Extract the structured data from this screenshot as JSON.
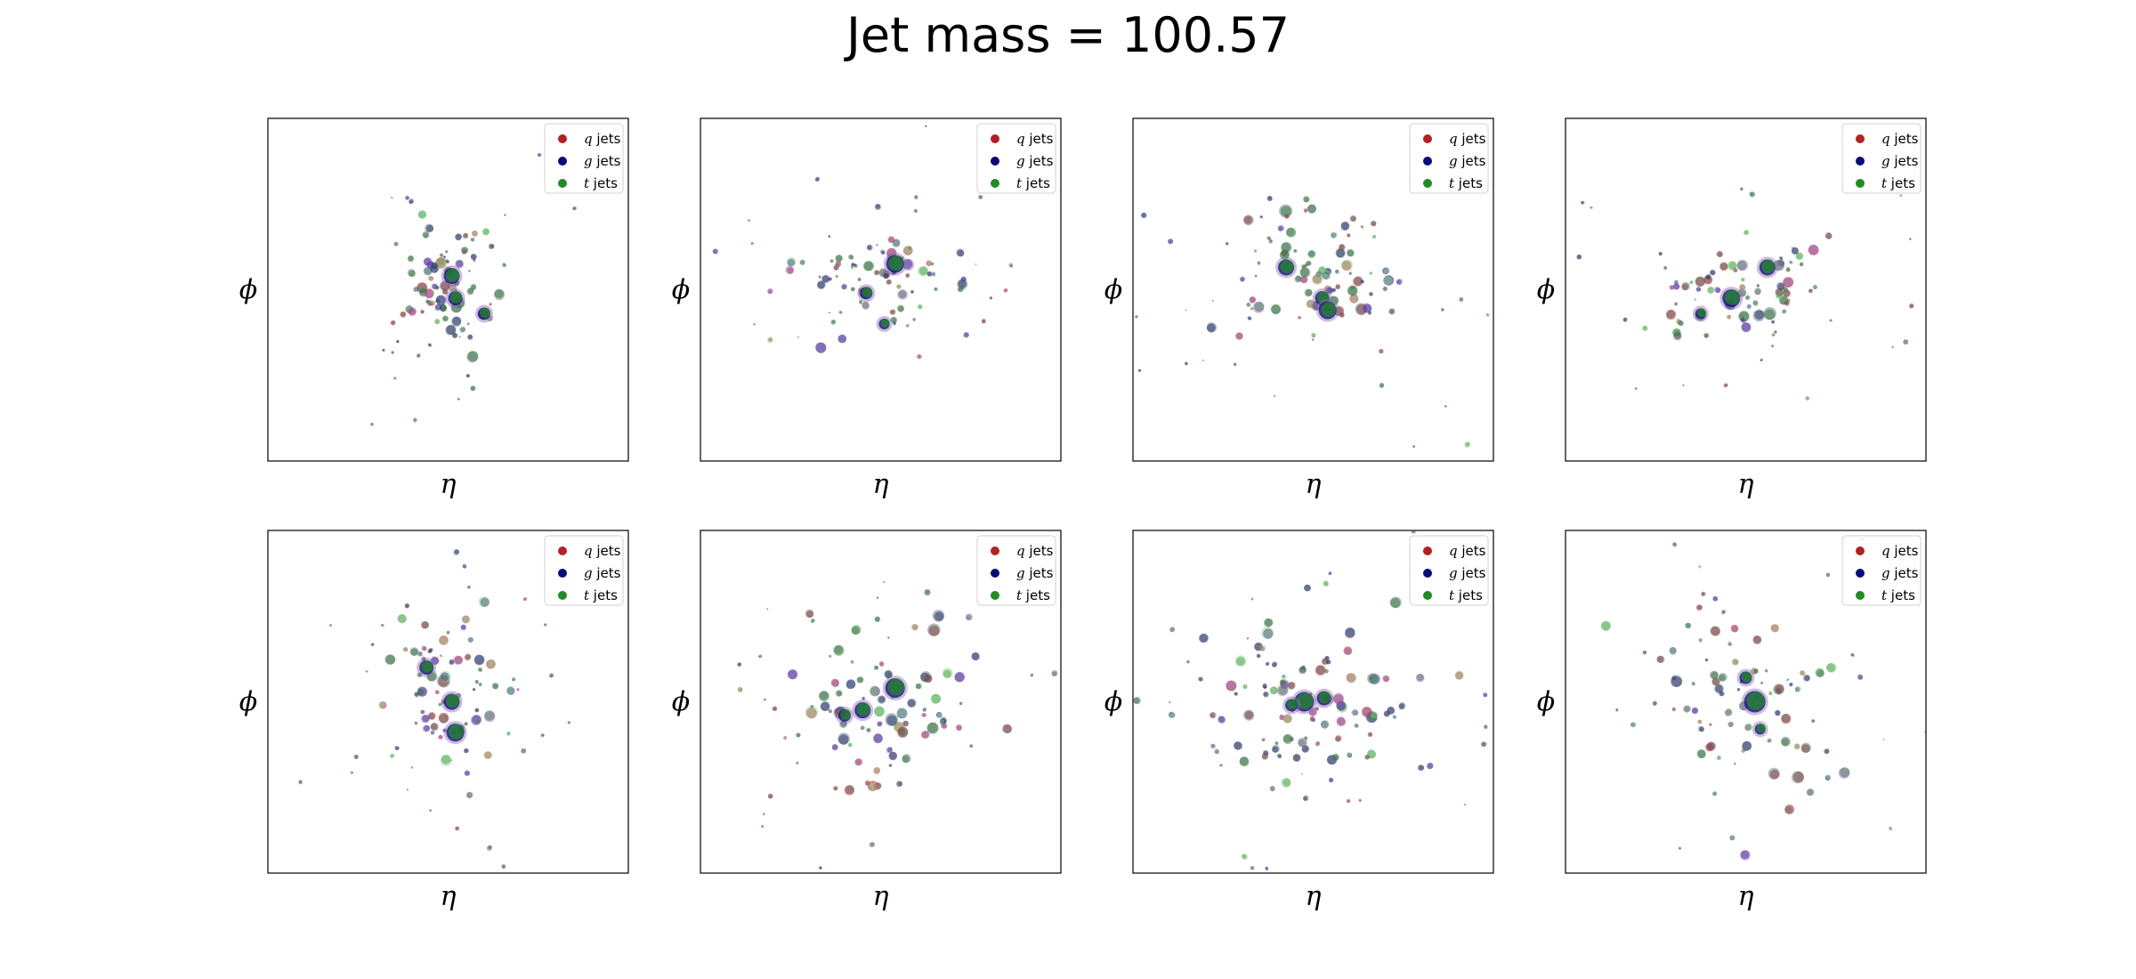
{
  "figure": {
    "title": "Jet mass = 100.57"
  },
  "colors": {
    "q": "#b22222",
    "g": "#0a0a78",
    "t": "#228b22",
    "purple_overlay": "#9467bd",
    "light_green_overlay": "#8fd18f",
    "grey_overlay": "#556b6b"
  },
  "chart_data": [
    {
      "type": "scatter",
      "panel": 1,
      "xlabel": "η",
      "ylabel": "ϕ",
      "legend": {
        "placement": "top-right",
        "entries": [
          {
            "symbol": "q",
            "text": "jets",
            "color": "#b22222"
          },
          {
            "symbol": "g",
            "text": "jets",
            "color": "#0a0a78"
          },
          {
            "symbol": "t",
            "text": "jets",
            "color": "#228b22"
          }
        ]
      },
      "grid": false,
      "ticks": false,
      "xlim": [
        -1,
        1
      ],
      "ylim": [
        -1,
        1
      ],
      "center": [
        0.02,
        0.04
      ],
      "spread": [
        0.18,
        0.25
      ],
      "points": 95,
      "seed": 11,
      "clusters": [
        {
          "x": 0.02,
          "y": 0.08,
          "r": 9
        },
        {
          "x": 0.04,
          "y": -0.05,
          "r": 8
        },
        {
          "x": 0.2,
          "y": -0.14,
          "r": 7
        }
      ]
    },
    {
      "type": "scatter",
      "panel": 2,
      "xlabel": "η",
      "ylabel": "ϕ",
      "legend": {
        "placement": "top-right",
        "entries": [
          {
            "symbol": "q",
            "text": "jets",
            "color": "#b22222"
          },
          {
            "symbol": "g",
            "text": "jets",
            "color": "#0a0a78"
          },
          {
            "symbol": "t",
            "text": "jets",
            "color": "#228b22"
          }
        ]
      },
      "grid": false,
      "ticks": false,
      "xlim": [
        -1,
        1
      ],
      "ylim": [
        -1,
        1
      ],
      "center": [
        0.0,
        0.08
      ],
      "spread": [
        0.25,
        0.18
      ],
      "points": 90,
      "seed": 23,
      "clusters": [
        {
          "x": 0.08,
          "y": 0.15,
          "r": 10
        },
        {
          "x": -0.08,
          "y": -0.02,
          "r": 7
        },
        {
          "x": 0.02,
          "y": -0.2,
          "r": 6
        }
      ]
    },
    {
      "type": "scatter",
      "panel": 3,
      "xlabel": "η",
      "ylabel": "ϕ",
      "legend": {
        "placement": "top-right",
        "entries": [
          {
            "symbol": "q",
            "text": "jets",
            "color": "#b22222"
          },
          {
            "symbol": "g",
            "text": "jets",
            "color": "#0a0a78"
          },
          {
            "symbol": "t",
            "text": "jets",
            "color": "#228b22"
          }
        ]
      },
      "grid": false,
      "ticks": false,
      "xlim": [
        -1,
        1
      ],
      "ylim": [
        -1,
        1
      ],
      "center": [
        -0.02,
        0.05
      ],
      "spread": [
        0.3,
        0.3
      ],
      "points": 110,
      "seed": 37,
      "clusters": [
        {
          "x": -0.15,
          "y": 0.13,
          "r": 9
        },
        {
          "x": 0.05,
          "y": -0.05,
          "r": 8
        },
        {
          "x": 0.08,
          "y": -0.12,
          "r": 10
        }
      ]
    },
    {
      "type": "scatter",
      "panel": 4,
      "xlabel": "η",
      "ylabel": "ϕ",
      "legend": {
        "placement": "top-right",
        "entries": [
          {
            "symbol": "q",
            "text": "jets",
            "color": "#b22222"
          },
          {
            "symbol": "g",
            "text": "jets",
            "color": "#0a0a78"
          },
          {
            "symbol": "t",
            "text": "jets",
            "color": "#228b22"
          }
        ]
      },
      "grid": false,
      "ticks": false,
      "xlim": [
        -1,
        1
      ],
      "ylim": [
        -1,
        1
      ],
      "center": [
        -0.05,
        0.0
      ],
      "spread": [
        0.3,
        0.18
      ],
      "points": 95,
      "seed": 41,
      "clusters": [
        {
          "x": -0.08,
          "y": -0.05,
          "r": 10
        },
        {
          "x": 0.12,
          "y": 0.13,
          "r": 9
        },
        {
          "x": -0.25,
          "y": -0.14,
          "r": 6
        }
      ]
    },
    {
      "type": "scatter",
      "panel": 5,
      "xlabel": "η",
      "ylabel": "ϕ",
      "legend": {
        "placement": "top-right",
        "entries": [
          {
            "symbol": "q",
            "text": "jets",
            "color": "#b22222"
          },
          {
            "symbol": "g",
            "text": "jets",
            "color": "#0a0a78"
          },
          {
            "symbol": "t",
            "text": "jets",
            "color": "#228b22"
          }
        ]
      },
      "grid": false,
      "ticks": false,
      "xlim": [
        -1,
        1
      ],
      "ylim": [
        -1,
        1
      ],
      "center": [
        0.02,
        0.04
      ],
      "spread": [
        0.2,
        0.33
      ],
      "points": 100,
      "seed": 53,
      "clusters": [
        {
          "x": -0.12,
          "y": 0.2,
          "r": 8
        },
        {
          "x": 0.02,
          "y": 0.0,
          "r": 9
        },
        {
          "x": 0.04,
          "y": -0.18,
          "r": 10
        }
      ]
    },
    {
      "type": "scatter",
      "panel": 6,
      "xlabel": "η",
      "ylabel": "ϕ",
      "legend": {
        "placement": "top-right",
        "entries": [
          {
            "symbol": "q",
            "text": "jets",
            "color": "#b22222"
          },
          {
            "symbol": "g",
            "text": "jets",
            "color": "#0a0a78"
          },
          {
            "symbol": "t",
            "text": "jets",
            "color": "#228b22"
          }
        ]
      },
      "grid": false,
      "ticks": false,
      "xlim": [
        -1,
        1
      ],
      "ylim": [
        -1,
        1
      ],
      "center": [
        -0.02,
        -0.05
      ],
      "spread": [
        0.35,
        0.3
      ],
      "points": 110,
      "seed": 67,
      "clusters": [
        {
          "x": 0.08,
          "y": 0.08,
          "r": 11
        },
        {
          "x": -0.1,
          "y": -0.05,
          "r": 9
        },
        {
          "x": -0.2,
          "y": -0.08,
          "r": 7
        }
      ]
    },
    {
      "type": "scatter",
      "panel": 7,
      "xlabel": "η",
      "ylabel": "ϕ",
      "legend": {
        "placement": "top-right",
        "entries": [
          {
            "symbol": "q",
            "text": "jets",
            "color": "#b22222"
          },
          {
            "symbol": "g",
            "text": "jets",
            "color": "#0a0a78"
          },
          {
            "symbol": "t",
            "text": "jets",
            "color": "#228b22"
          }
        ]
      },
      "grid": false,
      "ticks": false,
      "xlim": [
        -1,
        1
      ],
      "ylim": [
        -1,
        1
      ],
      "center": [
        -0.02,
        0.0
      ],
      "spread": [
        0.38,
        0.3
      ],
      "points": 130,
      "seed": 71,
      "clusters": [
        {
          "x": -0.05,
          "y": 0.0,
          "r": 11
        },
        {
          "x": 0.06,
          "y": 0.02,
          "r": 8
        },
        {
          "x": -0.12,
          "y": -0.02,
          "r": 7
        }
      ]
    },
    {
      "type": "scatter",
      "panel": 8,
      "xlabel": "η",
      "ylabel": "ϕ",
      "legend": {
        "placement": "top-right",
        "entries": [
          {
            "symbol": "q",
            "text": "jets",
            "color": "#b22222"
          },
          {
            "symbol": "g",
            "text": "jets",
            "color": "#0a0a78"
          },
          {
            "symbol": "t",
            "text": "jets",
            "color": "#228b22"
          }
        ]
      },
      "grid": false,
      "ticks": false,
      "xlim": [
        -1,
        1
      ],
      "ylim": [
        -1,
        1
      ],
      "center": [
        0.0,
        0.04
      ],
      "spread": [
        0.35,
        0.35
      ],
      "points": 100,
      "seed": 83,
      "clusters": [
        {
          "x": 0.05,
          "y": 0.0,
          "r": 12
        },
        {
          "x": 0.0,
          "y": 0.14,
          "r": 7
        },
        {
          "x": 0.08,
          "y": -0.16,
          "r": 6
        }
      ]
    }
  ]
}
